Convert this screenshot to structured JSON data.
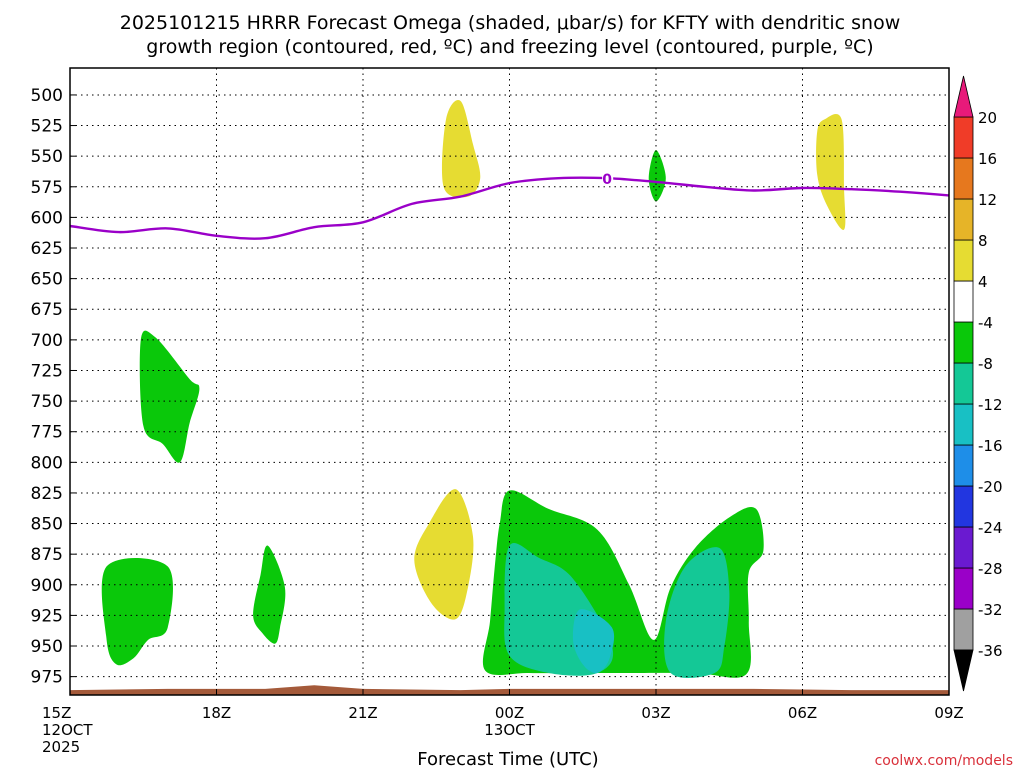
{
  "chart_data": {
    "type": "time-height",
    "title_lines": [
      "2025101215 HRRR Forecast Omega (shaded, μbar/s) for KFTY with dendritic snow",
      "growth region (contoured, red, ºC) and freezing level (contoured, purple, ºC)"
    ],
    "xlabel": "Forecast Time (UTC)",
    "credit": "coolwx.com/models",
    "x_ticks": [
      {
        "hour": 0,
        "lines": [
          "15Z",
          "12OCT",
          "2025"
        ]
      },
      {
        "hour": 3,
        "lines": [
          "18Z"
        ]
      },
      {
        "hour": 6,
        "lines": [
          "21Z"
        ]
      },
      {
        "hour": 9,
        "lines": [
          "00Z",
          "13OCT"
        ]
      },
      {
        "hour": 12,
        "lines": [
          "03Z"
        ]
      },
      {
        "hour": 15,
        "lines": [
          "06Z"
        ]
      },
      {
        "hour": 18,
        "lines": [
          "09Z"
        ]
      }
    ],
    "x_range_hours": [
      0,
      18
    ],
    "y_levels_hpa": [
      500,
      525,
      550,
      575,
      600,
      625,
      650,
      675,
      700,
      725,
      750,
      775,
      800,
      825,
      850,
      875,
      900,
      925,
      950,
      975
    ],
    "y_range_hpa": [
      478,
      990
    ],
    "colorbar": {
      "bins": [
        {
          "color": "#a0a0a0"
        },
        {
          "color": "#9a00c8"
        },
        {
          "color": "#6a1ad0"
        },
        {
          "color": "#2236e0"
        },
        {
          "color": "#1e8ee8"
        },
        {
          "color": "#18c0c4"
        },
        {
          "color": "#14c896"
        },
        {
          "color": "#0ac80a"
        },
        {
          "color": "#ffffff"
        },
        {
          "color": "#e6dc32"
        },
        {
          "color": "#e6b428"
        },
        {
          "color": "#e6781e"
        },
        {
          "color": "#f03c28"
        }
      ],
      "low_arrow_color": "#000000",
      "high_arrow_color": "#e81a7a",
      "labels": [
        "-36",
        "-32",
        "-28",
        "-24",
        "-20",
        "-16",
        "-12",
        "-8",
        "-4",
        "4",
        "8",
        "12",
        "16",
        "20"
      ]
    },
    "freezing_level": {
      "label": "0",
      "color": "#9a00c8",
      "points": [
        [
          0,
          607
        ],
        [
          1,
          612
        ],
        [
          2,
          609
        ],
        [
          3,
          615
        ],
        [
          4,
          617
        ],
        [
          5,
          608
        ],
        [
          6,
          604
        ],
        [
          7,
          589
        ],
        [
          8,
          583
        ],
        [
          9,
          572
        ],
        [
          10,
          568
        ],
        [
          11,
          568
        ],
        [
          12,
          571
        ],
        [
          13,
          575
        ],
        [
          14,
          578
        ],
        [
          15,
          576
        ],
        [
          16,
          577
        ],
        [
          17,
          579
        ],
        [
          18,
          582
        ]
      ]
    },
    "omega_regions": [
      {
        "category": "-4 to -8",
        "color": "#0ac80a",
        "points": [
          [
            1.45,
            700
          ],
          [
            1.75,
            698
          ],
          [
            2.45,
            732
          ],
          [
            2.65,
            740
          ],
          [
            2.45,
            768
          ],
          [
            2.25,
            800
          ],
          [
            1.9,
            785
          ],
          [
            1.5,
            770
          ]
        ]
      },
      {
        "category": "-4 to -8",
        "color": "#0ac80a",
        "points": [
          [
            0.75,
            885
          ],
          [
            2.0,
            885
          ],
          [
            2.0,
            935
          ],
          [
            1.6,
            945
          ],
          [
            1.3,
            960
          ],
          [
            0.95,
            965
          ],
          [
            0.75,
            945
          ]
        ]
      },
      {
        "category": "-4 to -8",
        "color": "#0ac80a",
        "points": [
          [
            4.05,
            868
          ],
          [
            4.4,
            902
          ],
          [
            4.3,
            935
          ],
          [
            4.2,
            948
          ],
          [
            3.95,
            940
          ],
          [
            3.75,
            925
          ],
          [
            3.9,
            892
          ]
        ]
      },
      {
        "category": "-4 to -8",
        "color": "#0ac80a",
        "points": [
          [
            9.0,
            823
          ],
          [
            9.8,
            838
          ],
          [
            10.8,
            855
          ],
          [
            11.45,
            900
          ],
          [
            11.95,
            945
          ],
          [
            12.3,
            902
          ],
          [
            12.8,
            870
          ],
          [
            13.5,
            845
          ],
          [
            14.05,
            838
          ],
          [
            14.2,
            872
          ],
          [
            13.9,
            890
          ],
          [
            13.9,
            930
          ],
          [
            13.85,
            973
          ],
          [
            12.8,
            972
          ],
          [
            11.5,
            972
          ],
          [
            10.5,
            972
          ],
          [
            9.4,
            972
          ],
          [
            8.5,
            970
          ],
          [
            8.6,
            930
          ],
          [
            8.7,
            885
          ],
          [
            8.8,
            850
          ]
        ]
      },
      {
        "category": "4 to 8",
        "color": "#e6dc32",
        "points": [
          [
            8.0,
            505
          ],
          [
            8.25,
            540
          ],
          [
            8.4,
            568
          ],
          [
            8.15,
            583
          ],
          [
            7.65,
            575
          ],
          [
            7.7,
            520
          ]
        ]
      },
      {
        "category": "4 to 8",
        "color": "#e6dc32",
        "points": [
          [
            15.45,
            520
          ],
          [
            15.8,
            520
          ],
          [
            15.85,
            575
          ],
          [
            15.85,
            610
          ],
          [
            15.5,
            590
          ],
          [
            15.3,
            565
          ],
          [
            15.3,
            530
          ]
        ]
      },
      {
        "category": "4 to 8",
        "color": "#e6dc32",
        "points": [
          [
            7.9,
            822
          ],
          [
            8.25,
            860
          ],
          [
            8.15,
            902
          ],
          [
            7.9,
            928
          ],
          [
            7.4,
            915
          ],
          [
            7.05,
            880
          ],
          [
            7.35,
            850
          ]
        ]
      },
      {
        "category": "-4 to -8",
        "color": "#0ac80a",
        "points": [
          [
            12.0,
            545
          ],
          [
            12.2,
            568
          ],
          [
            12.0,
            587
          ],
          [
            11.85,
            568
          ]
        ]
      },
      {
        "category": "-8 to -12",
        "color": "#14c896",
        "points": [
          [
            9.0,
            868
          ],
          [
            9.6,
            878
          ],
          [
            10.3,
            895
          ],
          [
            11.1,
            950
          ],
          [
            10.8,
            972
          ],
          [
            9.8,
            972
          ],
          [
            9.0,
            958
          ],
          [
            8.9,
            920
          ]
        ]
      },
      {
        "category": "-8 to -12",
        "color": "#14c896",
        "points": [
          [
            13.3,
            870
          ],
          [
            13.5,
            905
          ],
          [
            13.4,
            950
          ],
          [
            13.2,
            972
          ],
          [
            12.3,
            972
          ],
          [
            12.2,
            930
          ],
          [
            12.6,
            885
          ]
        ]
      },
      {
        "category": "-12 to -16",
        "color": "#18c0c4",
        "points": [
          [
            10.45,
            920
          ],
          [
            11.1,
            935
          ],
          [
            11.05,
            960
          ],
          [
            10.8,
            972
          ],
          [
            10.5,
            965
          ],
          [
            10.3,
            945
          ]
        ]
      }
    ],
    "terrain": {
      "color": "#a45a3a",
      "points": [
        [
          0,
          986
        ],
        [
          2,
          985
        ],
        [
          4,
          985
        ],
        [
          5,
          982
        ],
        [
          6,
          985
        ],
        [
          8,
          986
        ],
        [
          9,
          985
        ],
        [
          10,
          985
        ],
        [
          12,
          985
        ],
        [
          14,
          985
        ],
        [
          16,
          986
        ],
        [
          18,
          986
        ]
      ]
    }
  }
}
